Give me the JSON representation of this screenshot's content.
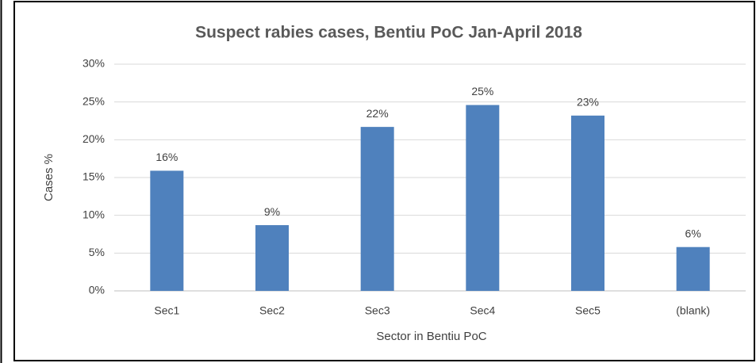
{
  "chart_data": {
    "type": "bar",
    "title": "Suspect rabies cases, Bentiu PoC Jan-April 2018",
    "x_label": "Sector in Bentiu PoC",
    "y_label": "Cases %",
    "categories": [
      "Sec1",
      "Sec2",
      "Sec3",
      "Sec4",
      "Sec5",
      "(blank)"
    ],
    "values": [
      15.9,
      8.7,
      21.7,
      24.6,
      23.2,
      5.8
    ],
    "value_labels": [
      "16%",
      "9%",
      "22%",
      "25%",
      "23%",
      "6%"
    ],
    "color": "#4f81bd",
    "ylim": [
      0,
      30
    ],
    "yticks": [
      {
        "value": 0,
        "label": "0%"
      },
      {
        "value": 5,
        "label": "5%"
      },
      {
        "value": 10,
        "label": "10%"
      },
      {
        "value": 15,
        "label": "15%"
      },
      {
        "value": 20,
        "label": "20%"
      },
      {
        "value": 25,
        "label": "25%"
      },
      {
        "value": 30,
        "label": "30%"
      }
    ],
    "grid": true
  }
}
